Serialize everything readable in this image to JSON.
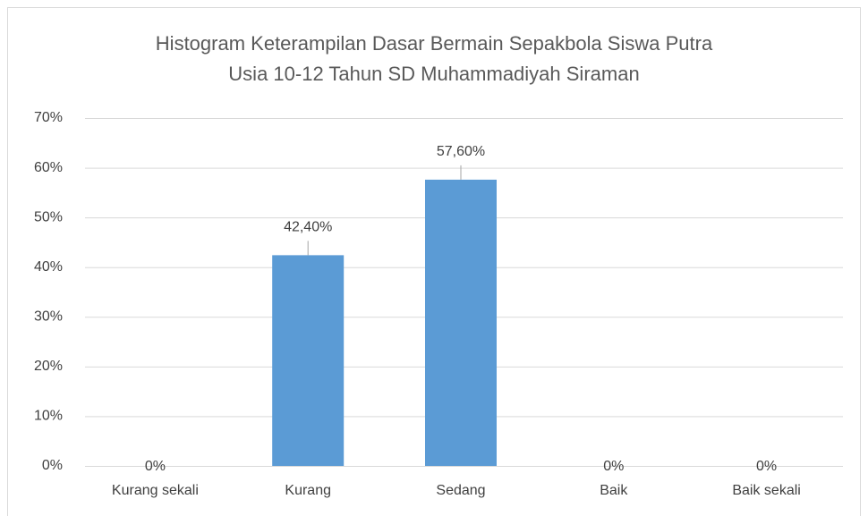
{
  "chart_data": {
    "type": "bar",
    "title": [
      "Histogram Keterampilan Dasar Bermain Sepakbola Siswa Putra",
      "Usia 10-12 Tahun SD Muhammadiyah Siraman"
    ],
    "categories": [
      "Kurang sekali",
      "Kurang",
      "Sedang",
      "Baik",
      "Baik sekali"
    ],
    "values": [
      0,
      42.4,
      57.6,
      0,
      0
    ],
    "value_labels": [
      "0%",
      "42,40%",
      "57,60%",
      "0%",
      "0%"
    ],
    "color": "#5b9bd5",
    "ylim": [
      0,
      70
    ],
    "yticks": [
      {
        "value": 0,
        "label": "0%"
      },
      {
        "value": 10,
        "label": "10%"
      },
      {
        "value": 20,
        "label": "20%"
      },
      {
        "value": 30,
        "label": "30%"
      },
      {
        "value": 40,
        "label": "40%"
      },
      {
        "value": 50,
        "label": "50%"
      },
      {
        "value": 60,
        "label": "60%"
      },
      {
        "value": 70,
        "label": "70%"
      }
    ],
    "grid": true
  }
}
